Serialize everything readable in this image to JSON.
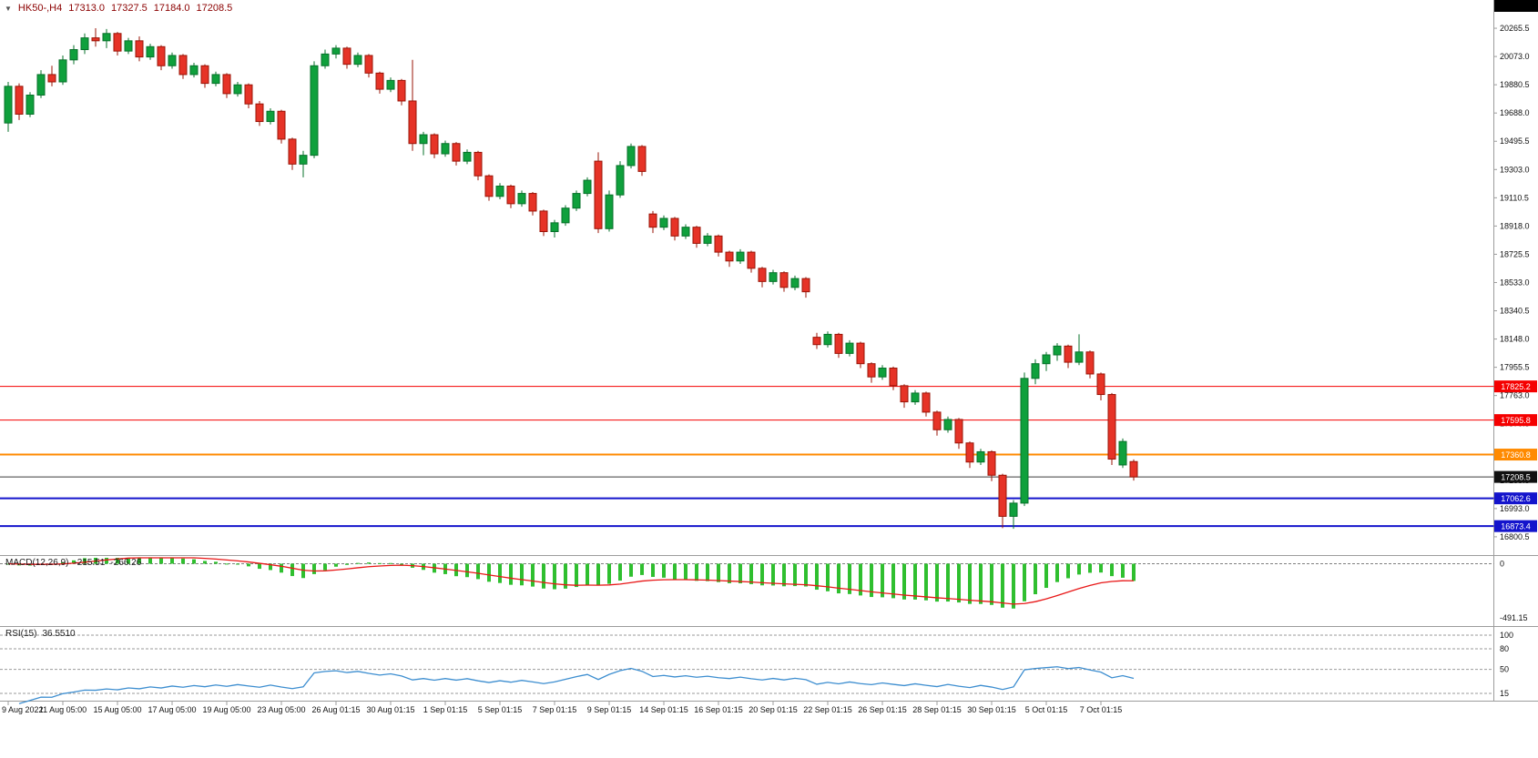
{
  "window": {
    "corner_box_color": "#000000"
  },
  "header": {
    "collapse_icon": "▼",
    "symbol": "HK50-,H4",
    "open": "17313.0",
    "high": "17327.5",
    "low": "17184.0",
    "close": "17208.5"
  },
  "indicators": {
    "macd": {
      "label": "MACD(12,26,9)",
      "value_main": "-215.51",
      "value_signal": "-266.26",
      "params": {
        "fast": 12,
        "slow": 26,
        "signal": 9
      },
      "histogram_color": "#2fbf2f",
      "signal_color": "#e81717",
      "axis_labels": [
        {
          "value": 0,
          "text": "0"
        },
        {
          "value": -491.15,
          "text": "-491.15"
        }
      ]
    },
    "rsi": {
      "label": "RSI(15)",
      "value": "36.5510",
      "period": 15,
      "line_color": "#3d8ed0",
      "levels": [
        100,
        80,
        50,
        15
      ],
      "axis_labels": [
        {
          "value": 100,
          "text": "100"
        },
        {
          "value": 80,
          "text": "80"
        },
        {
          "value": 50,
          "text": "50"
        },
        {
          "value": 15,
          "text": "15"
        }
      ]
    }
  },
  "chart_data": {
    "type": "candlestick",
    "symbol": "HK50-",
    "timeframe": "H4",
    "colors": {
      "up_fill": "#0fa03c",
      "up_stroke": "#07702a",
      "down_fill": "#e63327",
      "down_stroke": "#991407",
      "background": "#ffffff"
    },
    "price_axis": {
      "min": 16676,
      "max": 20334,
      "ticks": [
        20265.5,
        20073.0,
        19880.5,
        19688.0,
        19495.5,
        19303.0,
        19110.5,
        18918.0,
        18725.5,
        18533.0,
        18340.5,
        18148.0,
        17955.5,
        17763.0,
        17570.5,
        17378.0,
        17185.5,
        16993.0,
        16800.5
      ]
    },
    "levels": [
      {
        "price": 17825.2,
        "line_color": "#f50000",
        "label_bg": "#f50000",
        "width": 1
      },
      {
        "price": 17595.8,
        "line_color": "#f50000",
        "label_bg": "#f50000",
        "width": 1
      },
      {
        "price": 17360.8,
        "line_color": "#ff8a00",
        "label_bg": "#ff8a00",
        "width": 2
      },
      {
        "price": 17208.5,
        "line_color": "#3c3c3c",
        "label_bg": "#111111",
        "width": 1
      },
      {
        "price": 17062.6,
        "line_color": "#1414cc",
        "label_bg": "#1414cc",
        "width": 2
      },
      {
        "price": 16873.4,
        "line_color": "#1414cc",
        "label_bg": "#1414cc",
        "width": 2
      }
    ],
    "time_axis": {
      "candles_per_label": 5,
      "labels": [
        "9 Aug 2022",
        "11 Aug 05:00",
        "15 Aug 05:00",
        "17 Aug 05:00",
        "19 Aug 05:00",
        "23 Aug 05:00",
        "26 Aug 01:15",
        "30 Aug 01:15",
        "1 Sep 01:15",
        "5 Sep 01:15",
        "7 Sep 01:15",
        "9 Sep 01:15",
        "14 Sep 01:15",
        "16 Sep 01:15",
        "20 Sep 01:15",
        "22 Sep 01:15",
        "26 Sep 01:15",
        "28 Sep 01:15",
        "30 Sep 01:15",
        "5 Oct 01:15",
        "7 Oct 01:15"
      ]
    },
    "candles": [
      [
        19620,
        19900,
        19560,
        19870
      ],
      [
        19870,
        19890,
        19640,
        19680
      ],
      [
        19680,
        19830,
        19660,
        19810
      ],
      [
        19810,
        19980,
        19790,
        19950
      ],
      [
        19950,
        20010,
        19870,
        19900
      ],
      [
        19900,
        20080,
        19880,
        20050
      ],
      [
        20050,
        20150,
        20020,
        20120
      ],
      [
        20120,
        20230,
        20090,
        20200
      ],
      [
        20200,
        20265.5,
        20140,
        20180
      ],
      [
        20180,
        20260,
        20130,
        20230
      ],
      [
        20230,
        20240,
        20080,
        20110
      ],
      [
        20110,
        20200,
        20090,
        20180
      ],
      [
        20180,
        20210,
        20040,
        20070
      ],
      [
        20070,
        20160,
        20050,
        20140
      ],
      [
        20140,
        20150,
        19980,
        20010
      ],
      [
        20010,
        20100,
        19990,
        20080
      ],
      [
        20080,
        20090,
        19920,
        19950
      ],
      [
        19950,
        20030,
        19930,
        20010
      ],
      [
        20010,
        20020,
        19860,
        19890
      ],
      [
        19890,
        19970,
        19870,
        19950
      ],
      [
        19950,
        19960,
        19790,
        19820
      ],
      [
        19820,
        19900,
        19800,
        19880
      ],
      [
        19880,
        19890,
        19720,
        19750
      ],
      [
        19750,
        19770,
        19600,
        19630
      ],
      [
        19630,
        19720,
        19610,
        19700
      ],
      [
        19700,
        19710,
        19480,
        19510
      ],
      [
        19510,
        19520,
        19300,
        19340
      ],
      [
        19340,
        19430,
        19250,
        19400
      ],
      [
        19400,
        20040,
        19380,
        20010
      ],
      [
        20010,
        20120,
        19990,
        20090
      ],
      [
        20090,
        20150,
        20060,
        20130
      ],
      [
        20130,
        20140,
        19990,
        20020
      ],
      [
        20020,
        20100,
        20000,
        20080
      ],
      [
        20080,
        20090,
        19930,
        19960
      ],
      [
        19960,
        19970,
        19820,
        19850
      ],
      [
        19850,
        19930,
        19830,
        19910
      ],
      [
        19910,
        19920,
        19740,
        19770
      ],
      [
        19770,
        20050,
        19430,
        19480
      ],
      [
        19480,
        19560,
        19400,
        19540
      ],
      [
        19540,
        19550,
        19380,
        19410
      ],
      [
        19410,
        19500,
        19390,
        19480
      ],
      [
        19480,
        19490,
        19330,
        19360
      ],
      [
        19360,
        19440,
        19340,
        19420
      ],
      [
        19420,
        19430,
        19230,
        19260
      ],
      [
        19260,
        19270,
        19090,
        19120
      ],
      [
        19120,
        19210,
        19100,
        19190
      ],
      [
        19190,
        19200,
        19040,
        19070
      ],
      [
        19070,
        19160,
        19050,
        19140
      ],
      [
        19140,
        19150,
        18990,
        19020
      ],
      [
        19020,
        19030,
        18850,
        18880
      ],
      [
        18880,
        18960,
        18840,
        18940
      ],
      [
        18940,
        19060,
        18920,
        19040
      ],
      [
        19040,
        19160,
        19020,
        19140
      ],
      [
        19140,
        19250,
        19120,
        19230
      ],
      [
        19360,
        19420,
        18870,
        18900
      ],
      [
        18900,
        19160,
        18880,
        19130
      ],
      [
        19130,
        19360,
        19110,
        19330
      ],
      [
        19330,
        19480,
        19310,
        19460
      ],
      [
        19460,
        19470,
        19260,
        19290
      ],
      [
        19000,
        19020,
        18870,
        18910
      ],
      [
        18910,
        18990,
        18890,
        18970
      ],
      [
        18970,
        18980,
        18820,
        18850
      ],
      [
        18850,
        18930,
        18830,
        18910
      ],
      [
        18910,
        18920,
        18770,
        18800
      ],
      [
        18800,
        18870,
        18780,
        18850
      ],
      [
        18850,
        18860,
        18710,
        18740
      ],
      [
        18740,
        18750,
        18640,
        18680
      ],
      [
        18680,
        18760,
        18660,
        18740
      ],
      [
        18740,
        18750,
        18600,
        18630
      ],
      [
        18630,
        18640,
        18500,
        18540
      ],
      [
        18540,
        18620,
        18520,
        18600
      ],
      [
        18600,
        18610,
        18470,
        18500
      ],
      [
        18500,
        18580,
        18480,
        18560
      ],
      [
        18560,
        18570,
        18430,
        18470
      ],
      [
        18160,
        18190,
        18080,
        18110
      ],
      [
        18110,
        18200,
        18090,
        18180
      ],
      [
        18180,
        18190,
        18020,
        18050
      ],
      [
        18050,
        18140,
        18030,
        18120
      ],
      [
        18120,
        18130,
        17950,
        17980
      ],
      [
        17980,
        17990,
        17850,
        17890
      ],
      [
        17890,
        17970,
        17870,
        17950
      ],
      [
        17950,
        17960,
        17800,
        17830
      ],
      [
        17830,
        17840,
        17680,
        17720
      ],
      [
        17720,
        17800,
        17700,
        17780
      ],
      [
        17780,
        17790,
        17620,
        17650
      ],
      [
        17650,
        17660,
        17490,
        17530
      ],
      [
        17530,
        17620,
        17510,
        17600
      ],
      [
        17600,
        17610,
        17400,
        17440
      ],
      [
        17440,
        17450,
        17270,
        17310
      ],
      [
        17310,
        17400,
        17290,
        17380
      ],
      [
        17380,
        17390,
        17180,
        17220
      ],
      [
        17220,
        17230,
        16860,
        16940
      ],
      [
        16940,
        17050,
        16855,
        17030
      ],
      [
        17030,
        17920,
        17010,
        17880
      ],
      [
        17880,
        18010,
        17840,
        17980
      ],
      [
        17980,
        18060,
        17930,
        18040
      ],
      [
        18040,
        18120,
        18000,
        18100
      ],
      [
        18100,
        18110,
        17950,
        17990
      ],
      [
        17990,
        18180,
        17970,
        18060
      ],
      [
        18060,
        18070,
        17880,
        17910
      ],
      [
        17910,
        17920,
        17730,
        17770
      ],
      [
        17770,
        17780,
        17290,
        17330
      ],
      [
        17290,
        17470,
        17270,
        17450
      ],
      [
        17313,
        17327.5,
        17184,
        17208.5
      ]
    ]
  }
}
